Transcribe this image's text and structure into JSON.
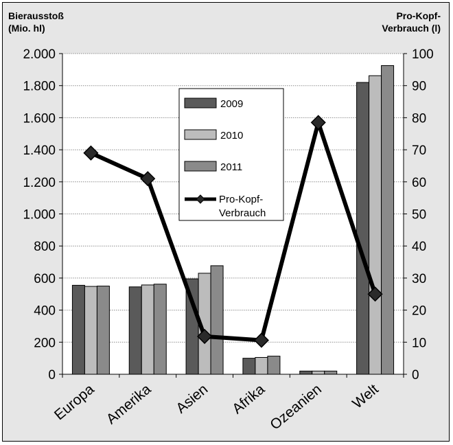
{
  "chart_data": {
    "type": "bar",
    "categories": [
      "Europa",
      "Amerika",
      "Asien",
      "Afrika",
      "Ozeanien",
      "Welt"
    ],
    "ylabel_left_lines": [
      "Bierausstoß",
      "(Mio. hl)"
    ],
    "ylabel_right_lines": [
      "Pro-Kopf-",
      "Verbrauch (l)"
    ],
    "ylim_left": [
      0,
      2000
    ],
    "yticks_left": [
      0,
      200,
      400,
      600,
      800,
      1000,
      1200,
      1400,
      1600,
      1800,
      2000
    ],
    "ytick_labels_left": [
      "0",
      "200",
      "400",
      "600",
      "800",
      "1.000",
      "1.200",
      "1.400",
      "1.600",
      "1.800",
      "2.000"
    ],
    "ylim_right": [
      0,
      100
    ],
    "yticks_right": [
      0,
      10,
      20,
      30,
      40,
      50,
      60,
      70,
      80,
      90,
      100
    ],
    "ytick_labels_right": [
      "0",
      "10",
      "20",
      "30",
      "40",
      "50",
      "60",
      "70",
      "80",
      "90",
      "100"
    ],
    "grid": true,
    "legend_position": "center-left",
    "series": [
      {
        "name": "2009",
        "type": "bar",
        "axis": "left",
        "color": "#5a5a5a",
        "values": [
          555,
          545,
          595,
          100,
          20,
          1820
        ]
      },
      {
        "name": "2010",
        "type": "bar",
        "axis": "left",
        "color": "#bcbcbc",
        "values": [
          548,
          557,
          630,
          105,
          20,
          1862
        ]
      },
      {
        "name": "2011",
        "type": "bar",
        "axis": "left",
        "color": "#8a8a8a",
        "values": [
          550,
          562,
          677,
          113,
          20,
          1925
        ]
      },
      {
        "name_lines": [
          "Pro-Kopf-",
          "Verbrauch"
        ],
        "type": "line",
        "axis": "right",
        "color": "#000000",
        "values": [
          69,
          61,
          11.8,
          10.6,
          78.5,
          25
        ]
      }
    ]
  }
}
